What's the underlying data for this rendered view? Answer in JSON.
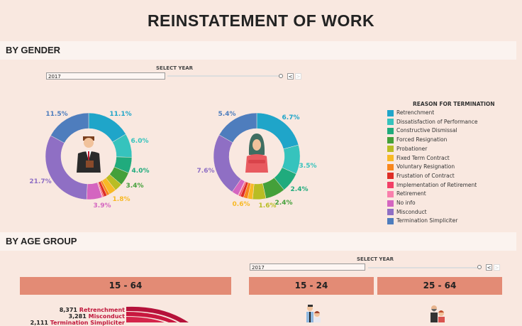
{
  "title": "REINSTATEMENT OF WORK",
  "sections": {
    "by_gender": "BY GENDER",
    "by_age_group": "BY AGE GROUP"
  },
  "gender_filter": {
    "label": "SELECT YEAR",
    "value": "2017",
    "prev": "<",
    "next": ">"
  },
  "age_filter": {
    "label": "SELECT YEAR",
    "value": "2017",
    "prev": "<",
    "next": ">"
  },
  "legend": {
    "title": "REASON FOR TERMINATION",
    "items": [
      {
        "label": "Retrenchment",
        "color": "#1fa5c9"
      },
      {
        "label": "Dissatisfaction of Performance",
        "color": "#36c3bd"
      },
      {
        "label": "Constructive Dismissal",
        "color": "#20ab7d"
      },
      {
        "label": "Forced Resignation",
        "color": "#44a03a"
      },
      {
        "label": "Probationer",
        "color": "#b9bd24"
      },
      {
        "label": "Fixed Term Contract",
        "color": "#f8b925"
      },
      {
        "label": "Voluntary Resignation",
        "color": "#f8861c"
      },
      {
        "label": "Frustation of Contract",
        "color": "#de2d26"
      },
      {
        "label": "Implementation of Retirement",
        "color": "#f23f66"
      },
      {
        "label": "Retirement",
        "color": "#f97fac"
      },
      {
        "label": "No info",
        "color": "#d465c0"
      },
      {
        "label": "Misconduct",
        "color": "#8f6fc4"
      },
      {
        "label": "Termination Simpliciter",
        "color": "#4e7dbd"
      }
    ]
  },
  "chart_data": [
    {
      "type": "pie",
      "donut": true,
      "gender": "male",
      "icon": "businessman-icon",
      "values": [
        11.1,
        6.0,
        4.0,
        3.4,
        2.0,
        1.8,
        0.7,
        0.8,
        0.3,
        0.2,
        3.9,
        21.7,
        11.5
      ],
      "labels": [
        "11.1%",
        "6.0%",
        "4.0%",
        "3.4%",
        null,
        "1.8%",
        null,
        null,
        null,
        null,
        "3.9%",
        "21.7%",
        "11.5%"
      ]
    },
    {
      "type": "pie",
      "donut": true,
      "gender": "female",
      "icon": "businesswoman-hijab-icon",
      "values": [
        6.7,
        3.5,
        2.4,
        2.4,
        1.6,
        0.6,
        0.5,
        0.4,
        0.2,
        0.1,
        0.8,
        7.6,
        5.4
      ],
      "labels": [
        "6.7%",
        "3.5%",
        "2.4%",
        "2.4%",
        "1.6%",
        "0.6%",
        null,
        null,
        null,
        null,
        null,
        "7.6%",
        "5.4%"
      ]
    },
    {
      "type": "bar",
      "variant": "radial",
      "age_group": "15 - 64",
      "items": [
        {
          "value": "8,371",
          "reason": "Retrenchment"
        },
        {
          "value": "3,281",
          "reason": "Misconduct"
        },
        {
          "value": "2,111",
          "reason": "Termination Simpliciter"
        }
      ]
    }
  ],
  "age_groups": [
    "15 - 64",
    "15 - 24",
    "25 - 64"
  ]
}
